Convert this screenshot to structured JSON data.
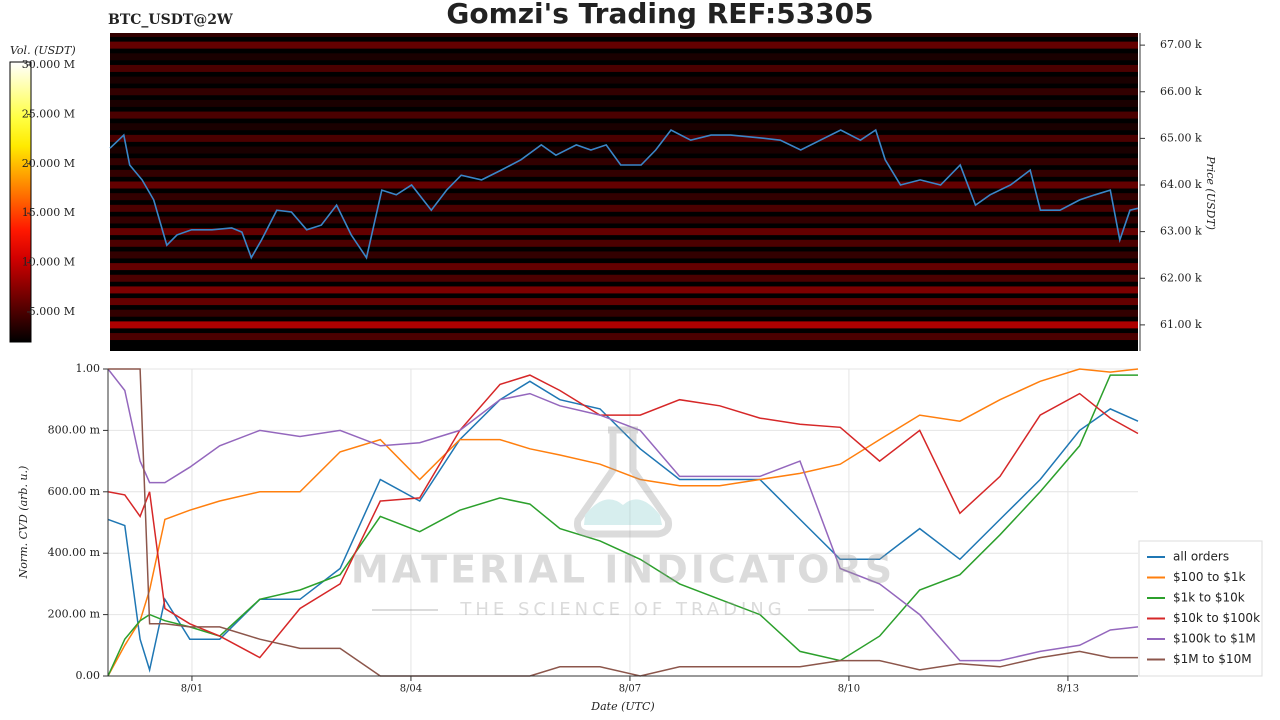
{
  "chart_data": [
    {
      "type": "heatmap",
      "title": "Gomzi's Trading REF:53305",
      "subtitle": "BTC_USDT@2W",
      "ylabel": "Price (USDT)",
      "ylim": [
        60.44,
        67.26
      ],
      "yticks": [
        {
          "value": 61,
          "label": "61.00 k"
        },
        {
          "value": 62,
          "label": "62.00 k"
        },
        {
          "value": 63,
          "label": "63.00 k"
        },
        {
          "value": 64,
          "label": "64.00 k"
        },
        {
          "value": 65,
          "label": "65.00 k"
        },
        {
          "value": 66,
          "label": "66.00 k"
        },
        {
          "value": 67,
          "label": "67.00 k"
        }
      ],
      "xlim": [
        -0.15,
        13.96
      ],
      "x": [
        -0.15,
        0.04,
        0.12,
        0.29,
        0.45,
        0.63,
        0.77,
        0.97,
        1.25,
        1.52,
        1.66,
        1.79,
        1.93,
        2.14,
        2.34,
        2.55,
        2.75,
        2.96,
        3.16,
        3.37,
        3.58,
        3.78,
        3.99,
        4.26,
        4.47,
        4.67,
        4.95,
        5.22,
        5.49,
        5.77,
        5.97,
        6.25,
        6.45,
        6.66,
        6.86,
        7.14,
        7.34,
        7.55,
        7.82,
        8.1,
        8.37,
        8.78,
        9.05,
        9.33,
        9.6,
        9.88,
        10.15,
        10.36,
        10.49,
        10.7,
        10.97,
        11.25,
        11.52,
        11.73,
        11.93,
        12.21,
        12.48,
        12.62,
        12.89,
        13.16,
        13.37,
        13.58,
        13.71,
        13.85,
        13.96
      ],
      "price_values": [
        64.79,
        65.07,
        64.43,
        64.11,
        63.68,
        62.71,
        62.93,
        63.04,
        63.04,
        63.08,
        62.99,
        62.44,
        62.82,
        63.46,
        63.42,
        63.04,
        63.14,
        63.57,
        62.93,
        62.44,
        63.89,
        63.79,
        64.0,
        63.46,
        63.89,
        64.21,
        64.11,
        64.32,
        64.54,
        64.86,
        64.64,
        64.86,
        64.75,
        64.86,
        64.43,
        64.43,
        64.75,
        65.18,
        64.96,
        65.07,
        65.07,
        65.01,
        64.96,
        64.75,
        64.96,
        65.18,
        64.96,
        65.18,
        64.54,
        64.0,
        64.11,
        64.0,
        64.43,
        63.57,
        63.79,
        64.0,
        64.32,
        63.46,
        63.46,
        63.68,
        63.79,
        63.89,
        62.82,
        63.46,
        63.5
      ],
      "price_color": "#3a86c8",
      "levels": [
        60.75,
        61.0,
        61.25,
        61.5,
        61.75,
        62.0,
        62.25,
        62.5,
        62.75,
        63.0,
        63.25,
        63.5,
        63.75,
        64.0,
        64.25,
        64.5,
        64.75,
        65.0,
        65.25,
        65.5,
        65.75,
        66.0,
        66.25,
        66.5,
        66.75,
        67.0,
        67.25
      ],
      "volumes": [
        5,
        9,
        4,
        6,
        7,
        5,
        6,
        4,
        5,
        6,
        4,
        5,
        4,
        6,
        4,
        4,
        3,
        5,
        3,
        5,
        3,
        4,
        3,
        5,
        3,
        6,
        4
      ],
      "colormap": "hot",
      "colorbar_label": "Vol. (USDT)",
      "clim": [
        1.96,
        30.3
      ],
      "colorbar_ticks": [
        {
          "value": 5,
          "label": "5.000 M"
        },
        {
          "value": 10,
          "label": "10.000 M"
        },
        {
          "value": 15,
          "label": "15.000 M"
        },
        {
          "value": 20,
          "label": "20.000 M"
        },
        {
          "value": 25,
          "label": "25.000 M"
        },
        {
          "value": 30,
          "label": "30.000 M"
        }
      ]
    },
    {
      "type": "line",
      "xlabel": "Date (UTC)",
      "ylabel": "Norm. CVD (arb. u.)",
      "xlim": [
        -0.15,
        13.96
      ],
      "xticks": [
        {
          "value": 1,
          "label": "8/01"
        },
        {
          "value": 4,
          "label": "8/04"
        },
        {
          "value": 7,
          "label": "8/07"
        },
        {
          "value": 10,
          "label": "8/10"
        },
        {
          "value": 13,
          "label": "8/13"
        }
      ],
      "ylim": [
        0,
        1
      ],
      "yticks": [
        {
          "value": 0,
          "label": "0.00"
        },
        {
          "value": 0.2,
          "label": "200.00 m"
        },
        {
          "value": 0.4,
          "label": "400.00 m"
        },
        {
          "value": 0.6,
          "label": "600.00 m"
        },
        {
          "value": 0.8,
          "label": "800.00 m"
        },
        {
          "value": 1,
          "label": "1.00"
        }
      ],
      "grid": true,
      "legend": "outside-right",
      "watermark": {
        "title": "MATERIAL INDICATORS",
        "subtitle": "THE SCIENCE OF TRADING"
      },
      "x": [
        -0.15,
        0.08,
        0.29,
        0.42,
        0.63,
        0.97,
        1.38,
        1.93,
        2.48,
        3.03,
        3.58,
        4.12,
        4.67,
        5.22,
        5.63,
        6.04,
        6.59,
        7.14,
        7.68,
        8.23,
        8.78,
        9.33,
        9.88,
        10.42,
        10.97,
        11.52,
        12.07,
        12.62,
        13.16,
        13.58,
        13.96
      ],
      "series": [
        {
          "name": "all orders",
          "color": "#1f77b4",
          "values": [
            0.51,
            0.49,
            0.12,
            0.02,
            0.25,
            0.12,
            0.12,
            0.25,
            0.25,
            0.35,
            0.64,
            0.57,
            0.77,
            0.9,
            0.96,
            0.9,
            0.87,
            0.74,
            0.64,
            0.64,
            0.64,
            0.51,
            0.38,
            0.38,
            0.48,
            0.38,
            0.51,
            0.64,
            0.8,
            0.87,
            0.83
          ]
        },
        {
          "name": "$100 to $1k",
          "color": "#ff7f0e",
          "values": [
            0,
            0.1,
            0.18,
            0.28,
            0.51,
            0.54,
            0.57,
            0.6,
            0.6,
            0.73,
            0.77,
            0.64,
            0.77,
            0.77,
            0.74,
            0.72,
            0.69,
            0.64,
            0.62,
            0.62,
            0.64,
            0.66,
            0.69,
            0.77,
            0.85,
            0.83,
            0.9,
            0.96,
            1.0,
            0.99,
            1.0
          ]
        },
        {
          "name": "$1k to $10k",
          "color": "#2ca02c",
          "values": [
            0,
            0.12,
            0.18,
            0.2,
            0.18,
            0.16,
            0.13,
            0.25,
            0.28,
            0.33,
            0.52,
            0.47,
            0.54,
            0.58,
            0.56,
            0.48,
            0.44,
            0.38,
            0.3,
            0.25,
            0.2,
            0.08,
            0.05,
            0.13,
            0.28,
            0.33,
            0.46,
            0.6,
            0.75,
            0.98,
            0.98
          ]
        },
        {
          "name": "$10k to $100k",
          "color": "#d62728",
          "values": [
            0.6,
            0.59,
            0.52,
            0.6,
            0.22,
            0.17,
            0.13,
            0.06,
            0.22,
            0.3,
            0.57,
            0.58,
            0.8,
            0.95,
            0.98,
            0.93,
            0.85,
            0.85,
            0.9,
            0.88,
            0.84,
            0.82,
            0.81,
            0.7,
            0.8,
            0.53,
            0.65,
            0.85,
            0.92,
            0.84,
            0.79
          ]
        },
        {
          "name": "$100k to $1M",
          "color": "#9467bd",
          "values": [
            1.0,
            0.93,
            0.7,
            0.63,
            0.63,
            0.68,
            0.75,
            0.8,
            0.78,
            0.8,
            0.75,
            0.76,
            0.8,
            0.9,
            0.92,
            0.88,
            0.85,
            0.8,
            0.65,
            0.65,
            0.65,
            0.7,
            0.35,
            0.3,
            0.2,
            0.05,
            0.05,
            0.08,
            0.1,
            0.15,
            0.16
          ]
        },
        {
          "name": "$1M to $10M",
          "color": "#8c564b",
          "values": [
            1.0,
            1.0,
            1.0,
            0.17,
            0.17,
            0.16,
            0.16,
            0.12,
            0.09,
            0.09,
            0,
            0,
            0,
            0,
            0,
            0.03,
            0.03,
            0,
            0.03,
            0.03,
            0.03,
            0.03,
            0.05,
            0.05,
            0.02,
            0.04,
            0.03,
            0.06,
            0.08,
            0.06,
            0.06
          ]
        }
      ]
    }
  ]
}
